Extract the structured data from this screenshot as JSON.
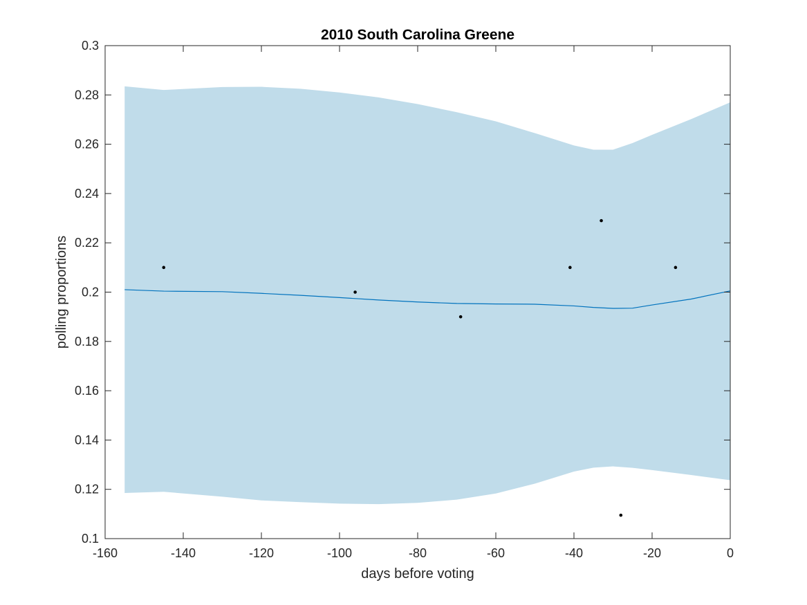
{
  "chart_data": {
    "type": "line",
    "title": "2010 South Carolina Greene",
    "xlabel": "days before voting",
    "ylabel": "polling proportions",
    "xlim": [
      -160,
      0
    ],
    "ylim": [
      0.1,
      0.3
    ],
    "x_ticks": [
      "-160",
      "-140",
      "-120",
      "-100",
      "-80",
      "-60",
      "-40",
      "-20",
      "0"
    ],
    "y_ticks": [
      "0.1",
      "0.12",
      "0.14",
      "0.16",
      "0.18",
      "0.2",
      "0.22",
      "0.24",
      "0.26",
      "0.28",
      "0.3"
    ],
    "grid": false,
    "colors": {
      "band": "#c0dcea",
      "trend": "#0072bd",
      "points": "#000000",
      "axes": "#262626"
    },
    "band": {
      "x": [
        -155,
        -145,
        -130,
        -120,
        -110,
        -100,
        -90,
        -80,
        -70,
        -60,
        -50,
        -40,
        -35,
        -30,
        -25,
        -20,
        -10,
        0
      ],
      "upper": [
        0.2835,
        0.282,
        0.2832,
        0.2833,
        0.2825,
        0.281,
        0.279,
        0.2763,
        0.273,
        0.2693,
        0.2645,
        0.2595,
        0.2578,
        0.2578,
        0.2605,
        0.2638,
        0.2702,
        0.277
      ],
      "lower": [
        0.1185,
        0.119,
        0.117,
        0.1155,
        0.1148,
        0.1142,
        0.114,
        0.1145,
        0.1158,
        0.1183,
        0.1223,
        0.1272,
        0.1288,
        0.1293,
        0.1287,
        0.1278,
        0.1258,
        0.1237
      ]
    },
    "trend": {
      "x": [
        -155,
        -145,
        -130,
        -120,
        -110,
        -100,
        -90,
        -80,
        -70,
        -60,
        -50,
        -40,
        -35,
        -30,
        -25,
        -20,
        -10,
        0
      ],
      "y": [
        0.201,
        0.2004,
        0.2002,
        0.1995,
        0.1987,
        0.1978,
        0.1968,
        0.196,
        0.1954,
        0.1952,
        0.1951,
        0.1944,
        0.1938,
        0.1934,
        0.1935,
        0.1948,
        0.1972,
        0.2005
      ]
    },
    "points": [
      {
        "x": -145,
        "y": 0.21
      },
      {
        "x": -96,
        "y": 0.2
      },
      {
        "x": -69,
        "y": 0.19
      },
      {
        "x": -41,
        "y": 0.21
      },
      {
        "x": -33,
        "y": 0.229
      },
      {
        "x": -28,
        "y": 0.1095
      },
      {
        "x": -14,
        "y": 0.21
      }
    ]
  }
}
